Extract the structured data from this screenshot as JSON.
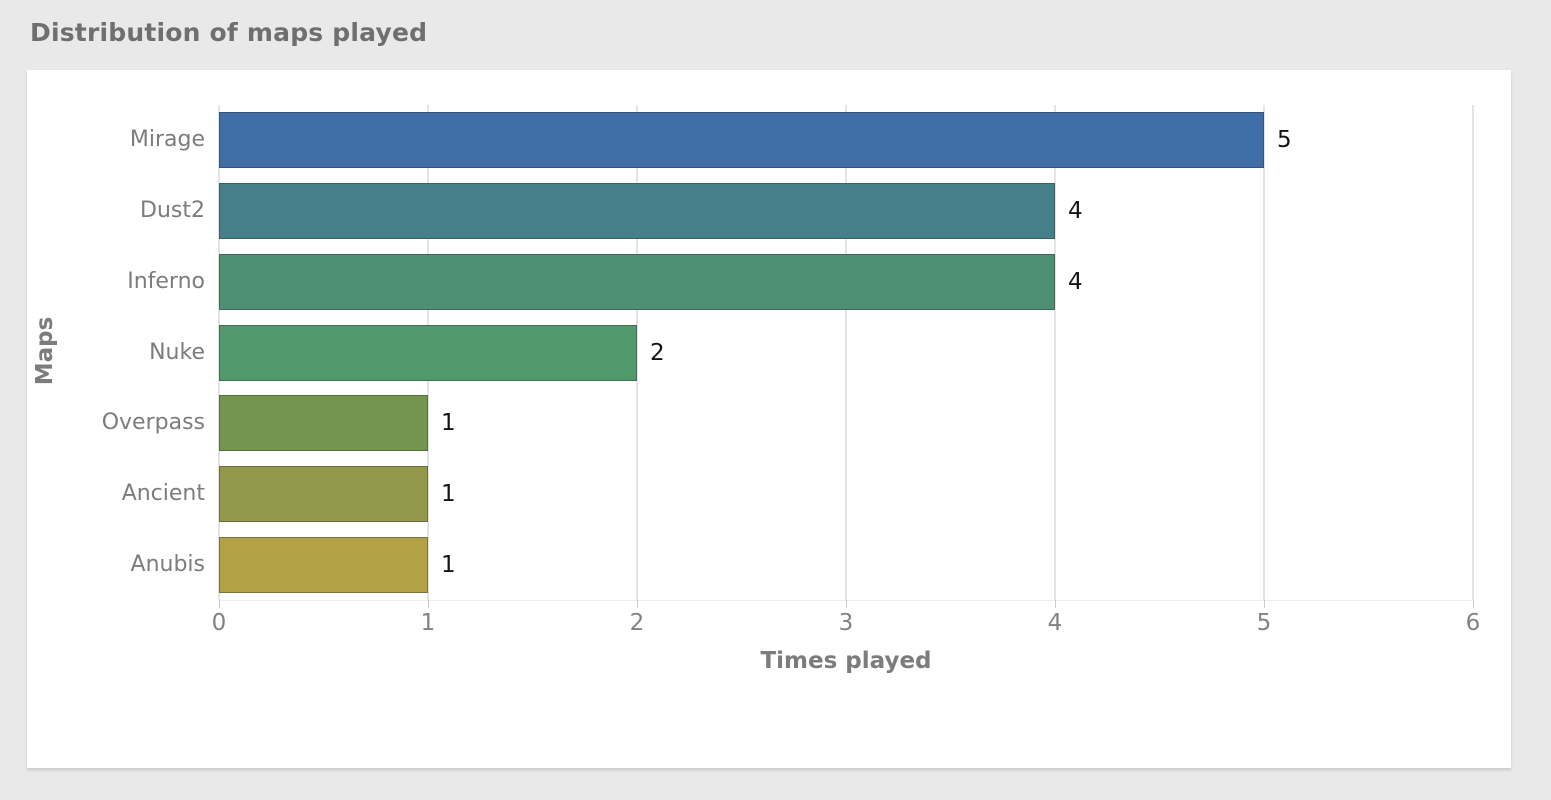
{
  "page": {
    "title": "Distribution of maps played",
    "background_color": "#e9e9ea",
    "panel_color": "#ffffff"
  },
  "chart_data": {
    "type": "bar",
    "orientation": "horizontal",
    "title": "Distribution of maps played",
    "categories": [
      "Mirage",
      "Dust2",
      "Inferno",
      "Nuke",
      "Overpass",
      "Ancient",
      "Anubis"
    ],
    "values": [
      5,
      4,
      4,
      2,
      1,
      1,
      1
    ],
    "value_labels": [
      "5",
      "4",
      "4",
      "2",
      "1",
      "1",
      "1"
    ],
    "bar_colors": [
      "#3f6da5",
      "#45808a",
      "#4c8f72",
      "#4f996c",
      "#74954e",
      "#94984b",
      "#b3a145"
    ],
    "xlabel": "Times played",
    "ylabel": "Maps",
    "xlim": [
      0,
      6
    ],
    "x_ticks": [
      0,
      1,
      2,
      3,
      4,
      5,
      6
    ],
    "grid": "vertical",
    "legend": "none",
    "gridline_color": "#e4e4e4",
    "axis_label_color": "#7c7c7c",
    "tick_label_color": "#828282",
    "value_label_color": "#141414"
  }
}
